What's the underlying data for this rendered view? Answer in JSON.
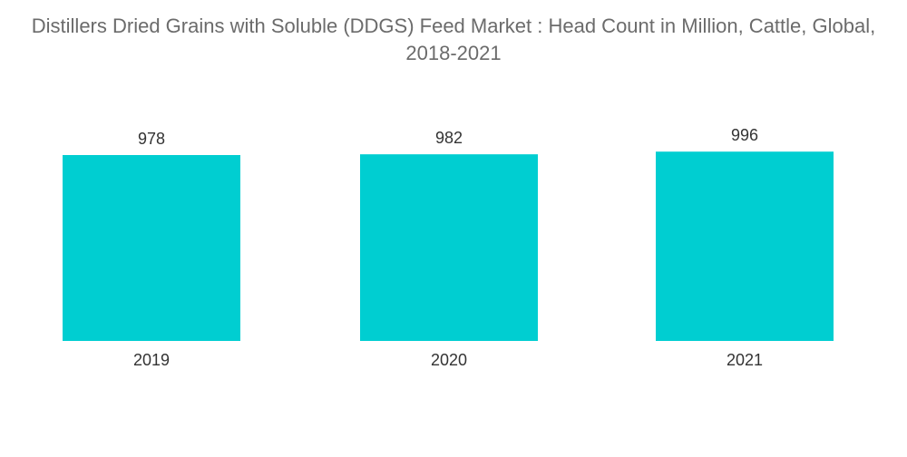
{
  "chart_data": {
    "type": "bar",
    "title": "Distillers Dried Grains with Soluble (DDGS) Feed Market : Head Count in Million, Cattle, Global, 2018-2021",
    "categories": [
      "2019",
      "2020",
      "2021"
    ],
    "values": [
      978,
      982,
      996
    ],
    "xlabel": "",
    "ylabel": "",
    "grid": false,
    "legend": "none",
    "bar_color": "#00ced1"
  }
}
